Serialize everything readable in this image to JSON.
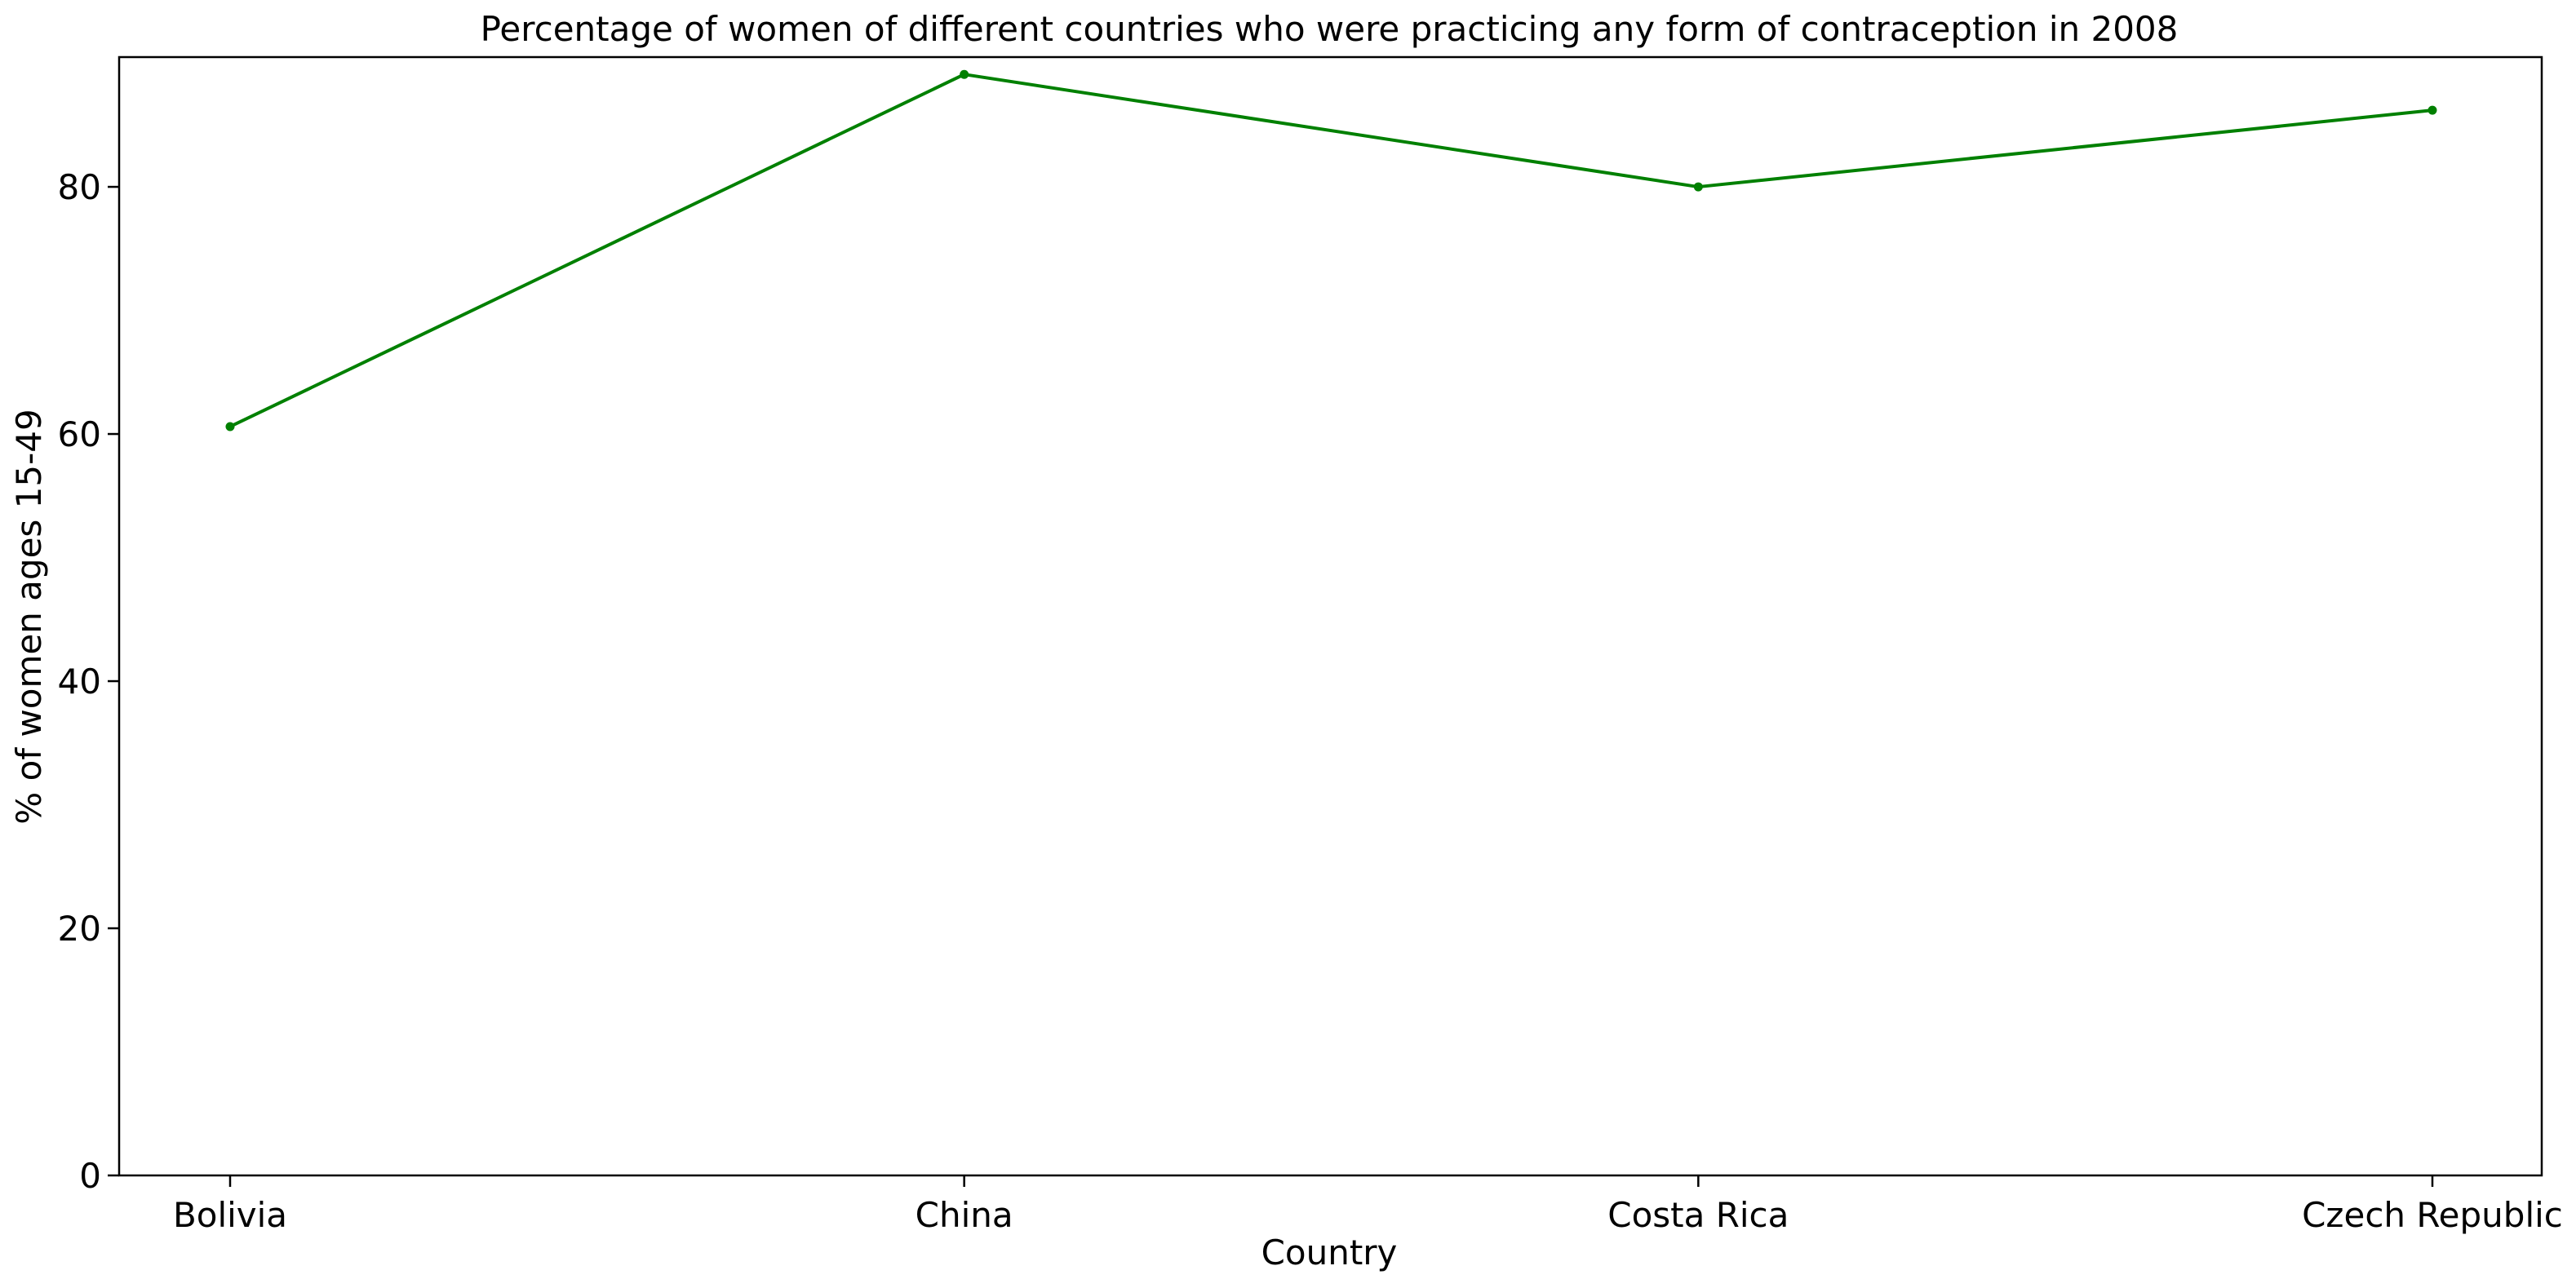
{
  "chart_data": {
    "type": "line",
    "title": "Percentage of women of different countries who were practicing any form of contraception in 2008",
    "xlabel": "Country",
    "ylabel": "% of women ages 15-49",
    "categories": [
      "Bolivia",
      "China",
      "Costa Rica",
      "Czech Republic"
    ],
    "series": [
      {
        "values": [
          60.6,
          89.1,
          80.0,
          86.2
        ],
        "color": "#008000",
        "marker": "circle"
      }
    ],
    "ylim": [
      0,
      90.5
    ],
    "yticks": [
      0,
      20,
      40,
      60,
      80
    ],
    "grid": false,
    "legend": "none"
  }
}
